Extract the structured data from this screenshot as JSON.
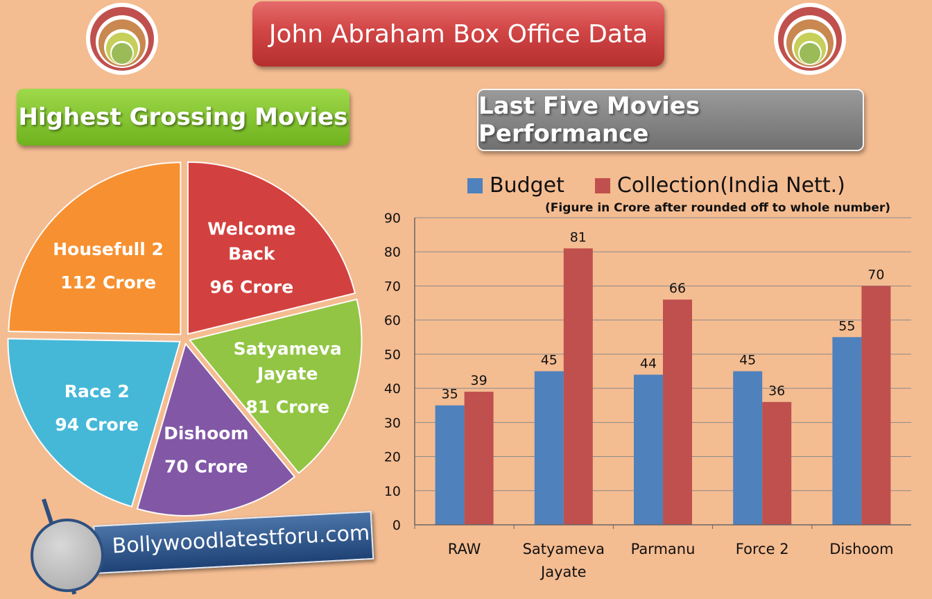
{
  "page": {
    "title": "John Abraham Box Office Data",
    "left_section_title": "Highest Grossing Movies",
    "right_section_title": "Last Five Movies Performance",
    "footer_site": "Bollywoodlatestforu.com",
    "bar_note": "(Figure in Crore after rounded off to whole number)"
  },
  "chart_data": [
    {
      "type": "pie",
      "title": "Highest Grossing Movies",
      "slices": [
        {
          "name": "Welcome Back",
          "value": 96,
          "label_lines": [
            "Welcome",
            "Back"
          ],
          "value_label": "96 Crore",
          "color": "#d13b3b"
        },
        {
          "name": "Satyameva Jayate",
          "value": 81,
          "label_lines": [
            "Satyameva",
            "Jayate"
          ],
          "value_label": "81 Crore",
          "color": "#8cc63f"
        },
        {
          "name": "Dishoom",
          "value": 70,
          "label_lines": [
            "Dishoom"
          ],
          "value_label": "70 Crore",
          "color": "#7b52a8"
        },
        {
          "name": "Race 2",
          "value": 94,
          "label_lines": [
            "Race 2"
          ],
          "value_label": "94 Crore",
          "color": "#3cb8dc"
        },
        {
          "name": "Housefull 2",
          "value": 112,
          "label_lines": [
            "Housefull 2"
          ],
          "value_label": "112 Crore",
          "color": "#f88e2b"
        }
      ]
    },
    {
      "type": "bar",
      "title": "Last Five Movies Performance",
      "categories": [
        "RAW",
        "Satyameva Jayate",
        "Parmanu",
        "Force 2",
        "Dishoom"
      ],
      "category_lines": [
        [
          "RAW"
        ],
        [
          "Satyameva",
          "Jayate"
        ],
        [
          "Parmanu"
        ],
        [
          "Force 2"
        ],
        [
          "Dishoom"
        ]
      ],
      "series": [
        {
          "name": "Budget",
          "values": [
            35,
            45,
            44,
            45,
            55
          ],
          "color": "#4f81bd"
        },
        {
          "name": "Collection(India Nett.)",
          "values": [
            39,
            81,
            66,
            36,
            70
          ],
          "color": "#c0504d"
        }
      ],
      "ylim": [
        0,
        90
      ],
      "yticks": [
        0,
        10,
        20,
        30,
        40,
        50,
        60,
        70,
        80,
        90
      ],
      "grid": true,
      "legend": "top"
    }
  ]
}
